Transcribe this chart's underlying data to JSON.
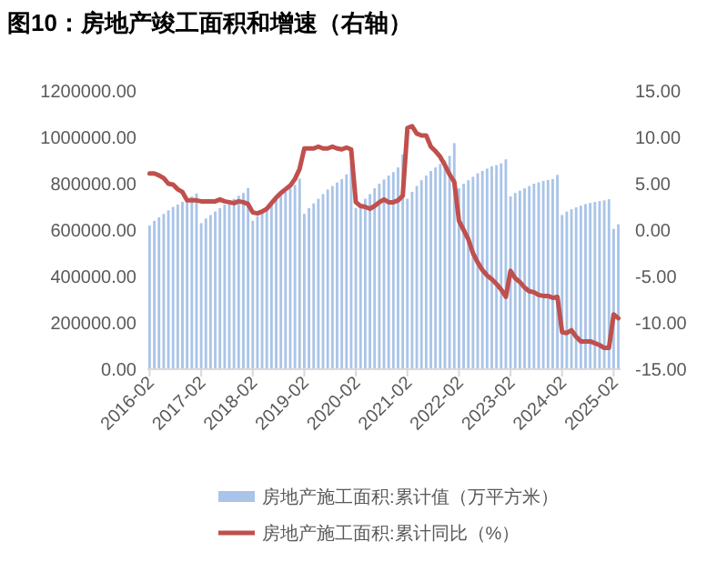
{
  "chart_data": {
    "type": "bar",
    "title": "图10：房地产竣工面积和增速（右轴）",
    "categories": [
      "2016-02",
      null,
      null,
      null,
      null,
      null,
      null,
      null,
      null,
      null,
      null,
      "2017-02",
      null,
      null,
      null,
      null,
      null,
      null,
      null,
      null,
      null,
      null,
      "2018-02",
      null,
      null,
      null,
      null,
      null,
      null,
      null,
      null,
      null,
      null,
      "2019-02",
      null,
      null,
      null,
      null,
      null,
      null,
      null,
      null,
      null,
      null,
      "2020-02",
      null,
      null,
      null,
      null,
      null,
      null,
      null,
      null,
      null,
      null,
      "2021-02",
      null,
      null,
      null,
      null,
      null,
      null,
      null,
      null,
      null,
      null,
      "2022-02",
      null,
      null,
      null,
      null,
      null,
      null,
      null,
      null,
      null,
      null,
      "2023-02",
      null,
      null,
      null,
      null,
      null,
      null,
      null,
      null,
      null,
      null,
      "2024-02",
      null,
      null,
      null,
      null,
      null,
      null,
      null,
      null,
      null,
      null,
      "2025-02",
      null
    ],
    "series": [
      {
        "name": "房地产施工面积:累计值（万平方米）",
        "color": "#a9c4e8",
        "values": [
          620000,
          640000,
          655000,
          670000,
          685000,
          700000,
          710000,
          722000,
          735000,
          745000,
          758000,
          630000,
          650000,
          665000,
          680000,
          695000,
          710000,
          722000,
          735000,
          748000,
          760000,
          781000,
          640000,
          660000,
          680000,
          700000,
          718000,
          735000,
          750000,
          765000,
          780000,
          795000,
          822000,
          670000,
          695000,
          715000,
          735000,
          755000,
          775000,
          790000,
          805000,
          820000,
          840000,
          894000,
          695000,
          710000,
          735000,
          755000,
          780000,
          800000,
          818000,
          835000,
          850000,
          870000,
          926000,
          735000,
          765000,
          790000,
          815000,
          835000,
          855000,
          870000,
          885000,
          900000,
          920000,
          975000,
          780000,
          800000,
          815000,
          830000,
          845000,
          855000,
          865000,
          875000,
          880000,
          888000,
          905000,
          745000,
          760000,
          770000,
          780000,
          790000,
          800000,
          806000,
          812000,
          816000,
          820000,
          838000,
          665000,
          680000,
          690000,
          698000,
          705000,
          712000,
          717000,
          721000,
          725000,
          728000,
          733000,
          605000,
          625000
        ]
      },
      {
        "name": "房地产施工面积:累计同比（%）",
        "type": "line",
        "axis": "y2",
        "color": "#c0504d",
        "values": [
          6.1,
          6.1,
          5.9,
          5.6,
          5.0,
          4.9,
          4.4,
          4.1,
          3.2,
          3.2,
          3.2,
          3.1,
          3.1,
          3.1,
          3.1,
          3.3,
          3.1,
          3.0,
          2.9,
          3.1,
          3.0,
          2.8,
          1.9,
          1.8,
          2.0,
          2.3,
          2.9,
          3.5,
          4.0,
          4.4,
          4.8,
          5.5,
          6.6,
          8.8,
          8.8,
          8.8,
          9.0,
          8.8,
          8.8,
          9.0,
          8.8,
          8.7,
          8.9,
          8.7,
          3.0,
          2.6,
          2.5,
          2.3,
          2.6,
          3.0,
          3.3,
          3.0,
          3.0,
          3.2,
          3.7,
          11.0,
          11.2,
          10.4,
          10.2,
          10.2,
          9.0,
          8.5,
          7.9,
          7.0,
          6.0,
          5.2,
          1.0,
          0.0,
          -1.0,
          -2.5,
          -3.5,
          -4.3,
          -4.9,
          -5.3,
          -5.8,
          -6.4,
          -7.2,
          -4.4,
          -5.2,
          -5.6,
          -6.2,
          -6.6,
          -6.7,
          -7.0,
          -7.1,
          -7.1,
          -7.3,
          -7.2,
          -11.0,
          -11.1,
          -10.8,
          -11.5,
          -12.0,
          -12.0,
          -12.0,
          -12.2,
          -12.4,
          -12.7,
          -12.7,
          -9.1,
          -9.5
        ]
      }
    ],
    "ylim": [
      0,
      1200000
    ],
    "yticks": [
      {
        "value": 0,
        "label": "0.00"
      },
      {
        "value": 200000,
        "label": "200000.00"
      },
      {
        "value": 400000,
        "label": "400000.00"
      },
      {
        "value": 600000,
        "label": "600000.00"
      },
      {
        "value": 800000,
        "label": "800000.00"
      },
      {
        "value": 1000000,
        "label": "1000000.00"
      },
      {
        "value": 1200000,
        "label": "1200000.00"
      }
    ],
    "y2lim": [
      -15,
      15
    ],
    "y2ticks": [
      {
        "value": -15,
        "label": "-15.00"
      },
      {
        "value": -10,
        "label": "-10.00"
      },
      {
        "value": -5,
        "label": "-5.00"
      },
      {
        "value": 0,
        "label": "0.00"
      },
      {
        "value": 5,
        "label": "5.00"
      },
      {
        "value": 10,
        "label": "10.00"
      },
      {
        "value": 15,
        "label": "15.00"
      }
    ],
    "grid": false,
    "legend": "bottom"
  }
}
